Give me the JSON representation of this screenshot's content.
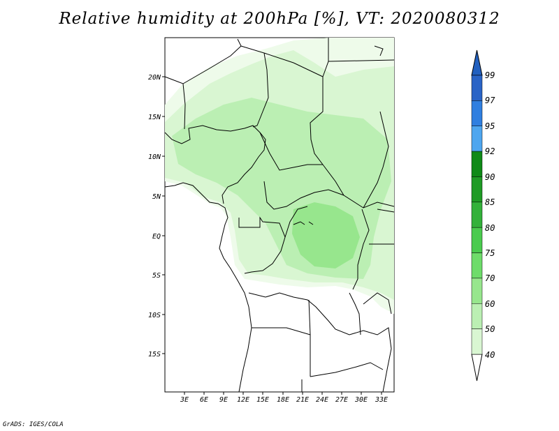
{
  "title": "Relative humidity at 200hPa [%], VT: 2020080312",
  "credit": "GrADS: IGES/COLA",
  "map": {
    "lon_range": [
      0,
      35
    ],
    "lat_range": [
      -20,
      24.5
    ],
    "lat_ticks": [
      "20N",
      "15N",
      "10N",
      "5N",
      "EQ",
      "5S",
      "10S",
      "15S"
    ],
    "lon_ticks": [
      "3E",
      "6E",
      "9E",
      "12E",
      "15E",
      "18E",
      "21E",
      "24E",
      "27E",
      "30E",
      "33E"
    ]
  },
  "colorbar": {
    "labels": [
      "99",
      "97",
      "95",
      "92",
      "90",
      "85",
      "80",
      "75",
      "70",
      "60",
      "50",
      "40"
    ],
    "colors": [
      "#2a64c6",
      "#2f7fe0",
      "#4ea6ef",
      "#0f8a17",
      "#1f9b25",
      "#33b13a",
      "#4acb4e",
      "#6edc6a",
      "#97e68d",
      "#bbefb3",
      "#d9f6d2",
      "#eefbea"
    ],
    "arrow_top_color": "#2260bf",
    "arrow_bottom_color": "#ffffff"
  }
}
